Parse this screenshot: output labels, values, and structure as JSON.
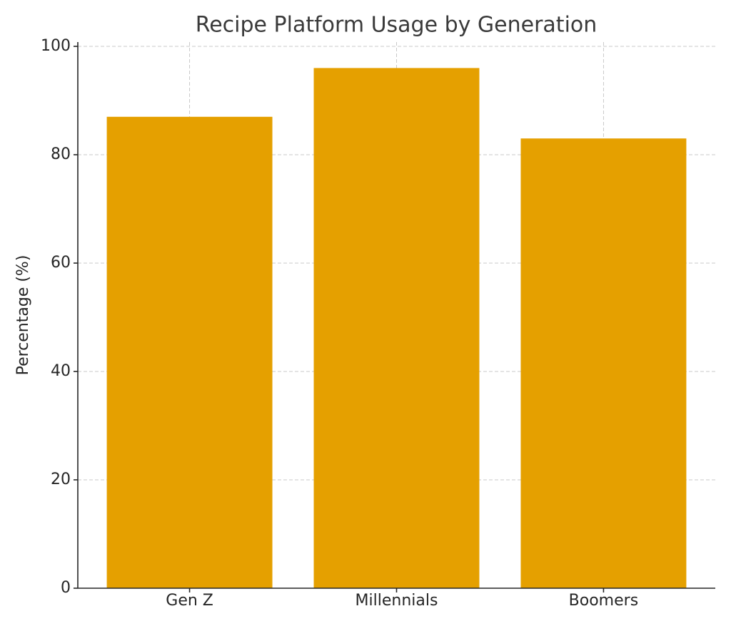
{
  "chart_data": {
    "type": "bar",
    "title": "Recipe Platform Usage by Generation",
    "y_label": "Percentage (%)",
    "categories": [
      "Gen Z",
      "Millennials",
      "Boomers"
    ],
    "values": [
      87,
      96,
      83
    ],
    "color": "#e5a000",
    "ylim": [
      0,
      100
    ],
    "yticks": [
      0,
      20,
      40,
      60,
      80,
      100
    ],
    "grid": true
  }
}
